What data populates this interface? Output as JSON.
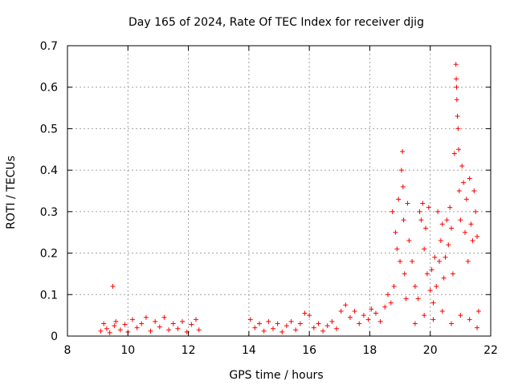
{
  "chart_data": {
    "type": "scatter",
    "title": "Day 165 of 2024, Rate Of TEC Index for receiver djig",
    "xlabel": "GPS time / hours",
    "ylabel": "ROTI / TECUs",
    "xlim": [
      8,
      22
    ],
    "ylim": [
      0,
      0.7
    ],
    "xticks": [
      8,
      10,
      12,
      14,
      16,
      18,
      20,
      22
    ],
    "yticks": [
      0,
      0.1,
      0.2,
      0.3,
      0.4,
      0.5,
      0.6,
      0.7
    ],
    "xtick_labels": [
      "8",
      "10",
      "12",
      "14",
      "16",
      "18",
      "20",
      "22"
    ],
    "ytick_labels": [
      "0",
      "0.1",
      "0.2",
      "0.3",
      "0.4",
      "0.5",
      "0.6",
      "0.7"
    ],
    "grid": true,
    "marker": "+",
    "color": "#ff0000",
    "series": [
      {
        "name": "ROTI",
        "points": [
          [
            9.1,
            0.012
          ],
          [
            9.2,
            0.03
          ],
          [
            9.3,
            0.018
          ],
          [
            9.4,
            0.008
          ],
          [
            9.5,
            0.12
          ],
          [
            9.55,
            0.025
          ],
          [
            9.6,
            0.035
          ],
          [
            9.75,
            0.015
          ],
          [
            9.9,
            0.028
          ],
          [
            10.0,
            0.01
          ],
          [
            10.15,
            0.04
          ],
          [
            10.3,
            0.02
          ],
          [
            10.45,
            0.03
          ],
          [
            10.6,
            0.045
          ],
          [
            10.75,
            0.012
          ],
          [
            10.9,
            0.035
          ],
          [
            11.05,
            0.022
          ],
          [
            11.2,
            0.045
          ],
          [
            11.35,
            0.015
          ],
          [
            11.5,
            0.03
          ],
          [
            11.65,
            0.018
          ],
          [
            11.8,
            0.035
          ],
          [
            11.95,
            0.01
          ],
          [
            12.1,
            0.028
          ],
          [
            12.25,
            0.04
          ],
          [
            12.35,
            0.015
          ],
          [
            14.05,
            0.04
          ],
          [
            14.2,
            0.02
          ],
          [
            14.35,
            0.03
          ],
          [
            14.5,
            0.012
          ],
          [
            14.65,
            0.035
          ],
          [
            14.8,
            0.018
          ],
          [
            14.95,
            0.03
          ],
          [
            15.1,
            0.01
          ],
          [
            15.25,
            0.025
          ],
          [
            15.4,
            0.035
          ],
          [
            15.55,
            0.015
          ],
          [
            15.7,
            0.03
          ],
          [
            15.85,
            0.055
          ],
          [
            16.0,
            0.05
          ],
          [
            16.15,
            0.02
          ],
          [
            16.3,
            0.03
          ],
          [
            16.45,
            0.012
          ],
          [
            16.6,
            0.025
          ],
          [
            16.75,
            0.035
          ],
          [
            16.9,
            0.018
          ],
          [
            17.05,
            0.06
          ],
          [
            17.2,
            0.075
          ],
          [
            17.35,
            0.045
          ],
          [
            17.5,
            0.06
          ],
          [
            17.65,
            0.03
          ],
          [
            17.8,
            0.05
          ],
          [
            17.95,
            0.04
          ],
          [
            18.05,
            0.065
          ],
          [
            18.2,
            0.055
          ],
          [
            18.35,
            0.035
          ],
          [
            18.5,
            0.07
          ],
          [
            18.6,
            0.1
          ],
          [
            18.7,
            0.08
          ],
          [
            18.75,
            0.3
          ],
          [
            18.8,
            0.12
          ],
          [
            18.85,
            0.25
          ],
          [
            18.9,
            0.21
          ],
          [
            18.95,
            0.33
          ],
          [
            19.0,
            0.18
          ],
          [
            19.05,
            0.4
          ],
          [
            19.08,
            0.445
          ],
          [
            19.1,
            0.36
          ],
          [
            19.12,
            0.28
          ],
          [
            19.15,
            0.15
          ],
          [
            19.2,
            0.09
          ],
          [
            19.25,
            0.32
          ],
          [
            19.3,
            0.23
          ],
          [
            19.4,
            0.18
          ],
          [
            19.5,
            0.12
          ],
          [
            19.6,
            0.09
          ],
          [
            19.65,
            0.3
          ],
          [
            19.7,
            0.28
          ],
          [
            19.75,
            0.32
          ],
          [
            19.8,
            0.21
          ],
          [
            19.85,
            0.26
          ],
          [
            19.9,
            0.15
          ],
          [
            19.95,
            0.31
          ],
          [
            20.0,
            0.11
          ],
          [
            20.05,
            0.16
          ],
          [
            20.1,
            0.08
          ],
          [
            20.15,
            0.19
          ],
          [
            20.2,
            0.12
          ],
          [
            20.25,
            0.3
          ],
          [
            20.3,
            0.18
          ],
          [
            20.35,
            0.23
          ],
          [
            20.4,
            0.27
          ],
          [
            20.45,
            0.14
          ],
          [
            20.5,
            0.19
          ],
          [
            20.55,
            0.28
          ],
          [
            20.6,
            0.22
          ],
          [
            20.65,
            0.31
          ],
          [
            20.7,
            0.26
          ],
          [
            20.75,
            0.15
          ],
          [
            20.8,
            0.44
          ],
          [
            20.85,
            0.655
          ],
          [
            20.86,
            0.62
          ],
          [
            20.87,
            0.6
          ],
          [
            20.88,
            0.57
          ],
          [
            20.9,
            0.53
          ],
          [
            20.92,
            0.5
          ],
          [
            20.94,
            0.45
          ],
          [
            20.96,
            0.35
          ],
          [
            21.0,
            0.28
          ],
          [
            21.05,
            0.41
          ],
          [
            21.1,
            0.37
          ],
          [
            21.15,
            0.25
          ],
          [
            21.2,
            0.33
          ],
          [
            21.25,
            0.18
          ],
          [
            21.3,
            0.38
          ],
          [
            21.35,
            0.27
          ],
          [
            21.4,
            0.23
          ],
          [
            21.45,
            0.35
          ],
          [
            21.5,
            0.3
          ],
          [
            21.55,
            0.24
          ],
          [
            21.6,
            0.06
          ],
          [
            19.5,
            0.03
          ],
          [
            19.8,
            0.05
          ],
          [
            20.1,
            0.04
          ],
          [
            20.4,
            0.06
          ],
          [
            20.7,
            0.03
          ],
          [
            21.0,
            0.05
          ],
          [
            21.3,
            0.04
          ],
          [
            21.55,
            0.02
          ]
        ]
      }
    ]
  }
}
